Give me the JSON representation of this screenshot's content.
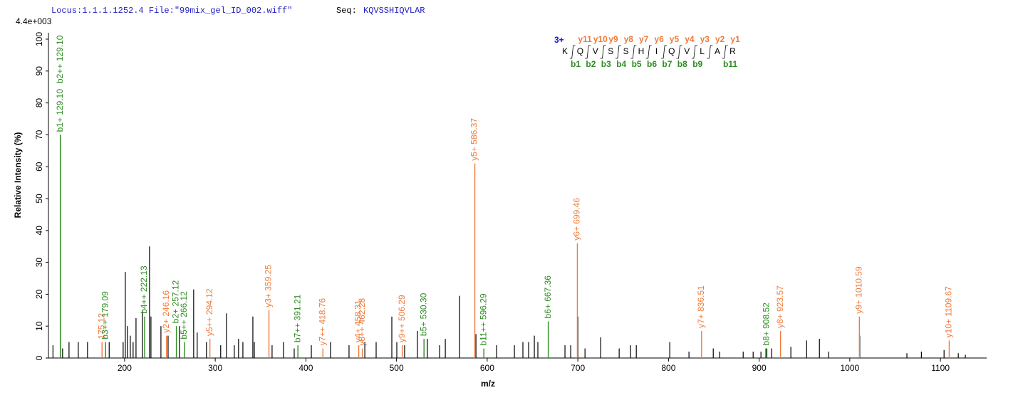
{
  "chart_data": {
    "type": "spectrum",
    "locus": "Locus:1.1.1.1252.4 File:\"99mix_gel_ID_002.wiff\"",
    "seq_label": "Seq:",
    "sequence": "KQVSSHIQVLAR",
    "max_intensity": "4.4e+003",
    "ylabel": "Relative   Intensity (%)",
    "xlabel": "m/z",
    "xlim": [
      116,
      1151
    ],
    "ylim": [
      0,
      100
    ],
    "xticks": [
      200,
      300,
      400,
      500,
      600,
      700,
      800,
      900,
      1000,
      1100
    ],
    "yticks": [
      0,
      10,
      20,
      30,
      40,
      50,
      60,
      70,
      80,
      90,
      100
    ],
    "peaks": {
      "name": "unassigned",
      "color": "#000000",
      "x": [
        121,
        131.6,
        138.7,
        148.9,
        159.1,
        183,
        198.4,
        200.8,
        203.1,
        206.3,
        209.4,
        212.6,
        219.7,
        227.5,
        229.1,
        240.1,
        248,
        260.5,
        276.2,
        280.1,
        290.3,
        306,
        312.4,
        321,
        325.7,
        330.5,
        341.5,
        343.1,
        362.7,
        375.3,
        387.1,
        406,
        427.2,
        447.6,
        465,
        477.5,
        494.8,
        500.3,
        508.9,
        523,
        534,
        547.5,
        553.8,
        569.5,
        587.6,
        610.4,
        630,
        639.4,
        645.7,
        652,
        655.9,
        685.8,
        692.1,
        700,
        707.9,
        725.2,
        745.6,
        758.2,
        764.5,
        801.4,
        822.6,
        849.4,
        856.5,
        882.4,
        893.4,
        902,
        907.5,
        913.8,
        935,
        952.4,
        966.5,
        976.7,
        1011,
        1063,
        1079,
        1104,
        1119.7,
        1127.5
      ],
      "values": [
        4,
        3,
        5,
        5,
        5,
        5,
        5,
        27,
        10,
        7,
        5,
        12.5,
        15,
        35,
        13,
        10,
        7,
        10,
        21.5,
        8,
        5,
        4,
        14,
        4,
        6,
        5,
        13,
        5,
        4,
        5,
        3,
        4,
        5,
        4,
        5,
        5,
        13,
        5,
        4,
        8.5,
        6,
        4,
        6,
        19.5,
        7.5,
        4,
        4,
        5,
        5,
        7,
        5,
        4,
        4,
        13,
        3,
        6.5,
        3,
        4,
        4,
        5,
        2,
        3,
        2,
        2,
        2,
        2,
        3,
        3,
        3.5,
        5.5,
        6,
        2,
        7,
        1.5,
        2,
        2.5,
        1.5,
        1
      ]
    },
    "annotations": [
      {
        "label": "b1+ 129.10",
        "x": 129.1,
        "value": 70,
        "color": "#2e8b22"
      },
      {
        "label": "b2++ 129.10",
        "x": 129.1,
        "value": 70,
        "color": "#2e8b22"
      },
      {
        "label": "175.12",
        "x": 175.12,
        "value": 5,
        "color": "#f07a3a"
      },
      {
        "label": "b3++ 179.09",
        "x": 179.09,
        "value": 5,
        "color": "#2e8b22"
      },
      {
        "label": "b4++ 222.13",
        "x": 222.13,
        "value": 13,
        "color": "#2e8b22"
      },
      {
        "label": "y2+ 246.16",
        "x": 246.16,
        "value": 7,
        "color": "#f07a3a"
      },
      {
        "label": "b2+ 257.12",
        "x": 257.12,
        "value": 10,
        "color": "#2e8b22"
      },
      {
        "label": "b5++ 266.12",
        "x": 266.12,
        "value": 5,
        "color": "#2e8b22"
      },
      {
        "label": "y5++ 294.12",
        "x": 294.12,
        "value": 6,
        "color": "#f07a3a"
      },
      {
        "label": "y3+ 359.25",
        "x": 359.25,
        "value": 15,
        "color": "#f07a3a"
      },
      {
        "label": "b7++ 391.21",
        "x": 391.21,
        "value": 4,
        "color": "#2e8b22"
      },
      {
        "label": "y7++ 418.76",
        "x": 418.76,
        "value": 3,
        "color": "#f07a3a"
      },
      {
        "label": "y4+ 458.31",
        "x": 458.31,
        "value": 4,
        "color": "#f07a3a"
      },
      {
        "label": "y8++ 462.28",
        "x": 462.28,
        "value": 3,
        "color": "#f07a3a"
      },
      {
        "label": "y9++ 506.29",
        "x": 506.29,
        "value": 4,
        "color": "#f07a3a"
      },
      {
        "label": "b5+ 530.30",
        "x": 530.3,
        "value": 6,
        "color": "#2e8b22"
      },
      {
        "label": "y5+ 586.37",
        "x": 586.37,
        "value": 61,
        "color": "#f07a3a"
      },
      {
        "label": "b11++ 596.29",
        "x": 596.29,
        "value": 3,
        "color": "#2e8b22"
      },
      {
        "label": "b6+ 667.36",
        "x": 667.36,
        "value": 11.5,
        "color": "#2e8b22"
      },
      {
        "label": "y6+ 699.46",
        "x": 699.46,
        "value": 36,
        "color": "#f07a3a"
      },
      {
        "label": "y7+ 836.51",
        "x": 836.51,
        "value": 8.5,
        "color": "#f07a3a"
      },
      {
        "label": "b8+ 908.52",
        "x": 908.52,
        "value": 3,
        "color": "#2e8b22"
      },
      {
        "label": "y8+ 923.57",
        "x": 923.57,
        "value": 8.5,
        "color": "#f07a3a"
      },
      {
        "label": "y9+ 1010.59",
        "x": 1010.59,
        "value": 13,
        "color": "#f07a3a"
      },
      {
        "label": "y10+ 1109.67",
        "x": 1109.67,
        "value": 5.5,
        "color": "#f07a3a"
      }
    ],
    "fragment_map": {
      "charge": "3+",
      "residues": [
        "K",
        "Q",
        "V",
        "S",
        "S",
        "H",
        "I",
        "Q",
        "V",
        "L",
        "A",
        "R"
      ],
      "y_labels": [
        null,
        "y11",
        "y10",
        "y9",
        "y8",
        "y7",
        "y6",
        "y5",
        "y4",
        "y3",
        "y2",
        "y1"
      ],
      "b_labels": [
        "b1",
        "b2",
        "b3",
        "b4",
        "b5",
        "b6",
        "b7",
        "b8",
        "b9",
        null,
        "b11",
        null
      ]
    }
  }
}
